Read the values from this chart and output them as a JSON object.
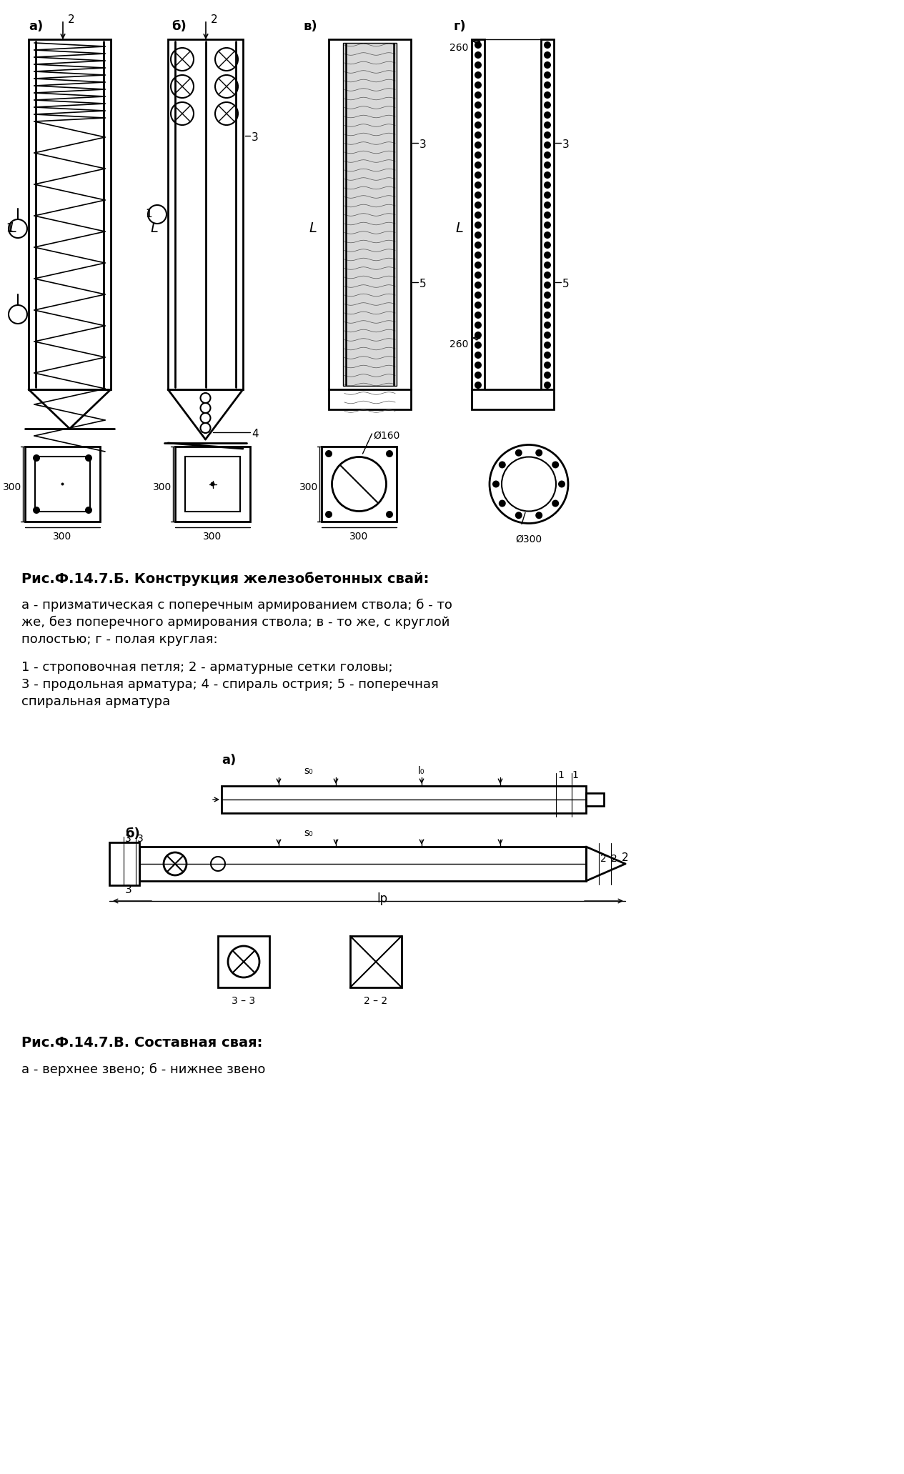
{
  "bg_color": "#ffffff",
  "title1": "Рис.Ф.14.7.Б. Конструкция железобетонных свай:",
  "desc1a": "а - призматическая с поперечным армированием ствола; б - то",
  "desc1b": "же, без поперечного армирования ствола; в - то же, с круглой",
  "desc1c": "полостью; г - полая круглая:",
  "desc2a": "1 - строповочная петля; 2 - арматурные сетки головы;",
  "desc2b": "3 - продольная арматура; 4 - спираль острия; 5 - поперечная",
  "desc2c": "спиральная арматура",
  "title2": "Рис.Ф.14.7.В. Составная свая:",
  "desc3": "а - верхнее звено; б - нижнее звено"
}
